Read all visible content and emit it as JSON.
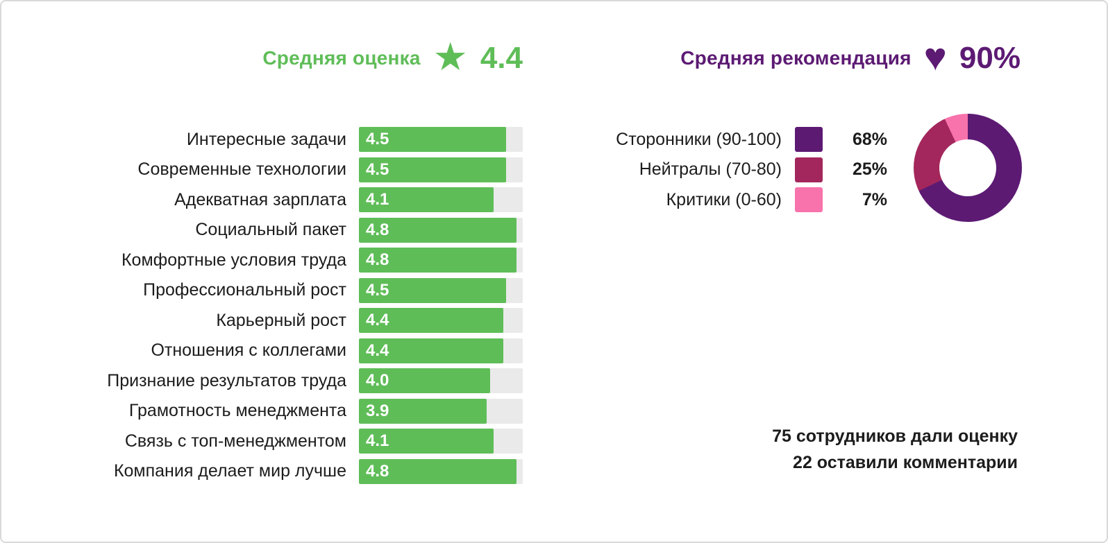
{
  "colors": {
    "green": "#5FBD58",
    "purple": "#5C1A73",
    "maroon": "#A3275C",
    "pink": "#F873AB",
    "track": "#EAEAEA"
  },
  "left_header": {
    "label": "Средняя оценка",
    "star_icon": "★",
    "value": "4.4"
  },
  "right_header": {
    "label": "Средняя рекомендация",
    "heart_icon": "♥",
    "value": "90%"
  },
  "footer": {
    "line1": "75 сотрудников дали оценку",
    "line2": "22 оставили комментарии"
  },
  "chart_data": [
    {
      "type": "bar",
      "orientation": "horizontal",
      "title": "Средняя оценка",
      "average_value": 4.4,
      "categories": [
        "Интересные задачи",
        "Современные технологии",
        "Адекватная зарплата",
        "Социальный пакет",
        "Комфортные условия труда",
        "Профессиональный рост",
        "Карьерный рост",
        "Отношения с коллегами",
        "Признание результатов труда",
        "Грамотность менеджмента",
        "Связь с топ-менеджментом",
        "Компания делает мир лучше"
      ],
      "values": [
        4.5,
        4.5,
        4.1,
        4.8,
        4.8,
        4.5,
        4.4,
        4.4,
        4.0,
        3.9,
        4.1,
        4.8
      ],
      "xlim": [
        0,
        5
      ],
      "bar_color": "#5FBD58",
      "track_color": "#EAEAEA",
      "value_labels_inside_bars": true,
      "grid": false
    },
    {
      "type": "pie",
      "donut": true,
      "title": "Средняя рекомендация",
      "average_value": "90%",
      "labels": [
        "Сторонники (90-100)",
        "Нейтралы (70-80)",
        "Критики (0-60)"
      ],
      "values": [
        68,
        25,
        7
      ],
      "value_labels": [
        "68%",
        "25%",
        "7%"
      ],
      "colors": [
        "#5C1A73",
        "#A3275C",
        "#F873AB"
      ],
      "legend_position": "left",
      "start_angle_deg": 0,
      "direction": "clockwise"
    }
  ]
}
